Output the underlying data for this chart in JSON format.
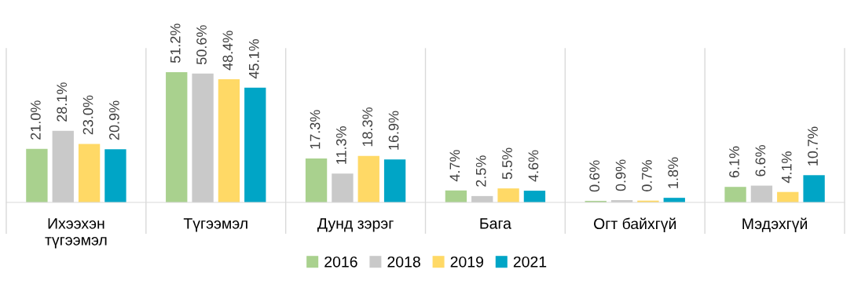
{
  "chart_data": {
    "type": "bar",
    "categories": [
      "Ихээхэн\nтүгээмэл",
      "Түгээмэл",
      "Дунд зэрэг",
      "Бага",
      "Огт байхгүй",
      "Мэдэхгүй"
    ],
    "series": [
      {
        "name": "2016",
        "color": "#a9d18e",
        "values": [
          21.0,
          51.2,
          17.3,
          4.7,
          0.6,
          6.1
        ],
        "value_labels": [
          "21.0%",
          "51.2%",
          "17.3%",
          "4.7%",
          "0.6%",
          "6.1%"
        ]
      },
      {
        "name": "2018",
        "color": "#c9c9c9",
        "values": [
          28.1,
          50.6,
          11.3,
          2.5,
          0.9,
          6.6
        ],
        "value_labels": [
          "28.1%",
          "50.6%",
          "11.3%",
          "2.5%",
          "0.9%",
          "6.6%"
        ]
      },
      {
        "name": "2019",
        "color": "#ffd966",
        "values": [
          23.0,
          48.4,
          18.3,
          5.5,
          0.7,
          4.1
        ],
        "value_labels": [
          "23.0%",
          "48.4%",
          "18.3%",
          "5.5%",
          "0.7%",
          "4.1%"
        ]
      },
      {
        "name": "2021",
        "color": "#00a5c6",
        "values": [
          20.9,
          45.1,
          16.9,
          4.6,
          1.8,
          10.7
        ],
        "value_labels": [
          "20.9%",
          "45.1%",
          "16.9%",
          "4.6%",
          "1.8%",
          "10.7%"
        ]
      }
    ],
    "tick_labels": "x",
    "grid": false,
    "legend": "bottom"
  }
}
